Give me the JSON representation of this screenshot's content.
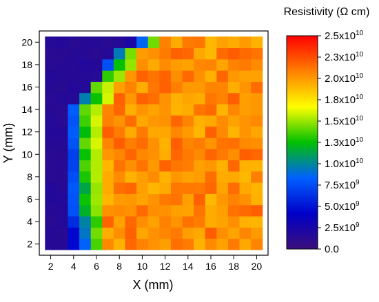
{
  "chart_data": {
    "type": "heatmap",
    "title": "",
    "xlabel": "X (mm)",
    "ylabel": "Y (mm)",
    "xlim": [
      1,
      21
    ],
    "ylim": [
      1,
      21
    ],
    "x_ticks": [
      "2",
      "4",
      "6",
      "8",
      "10",
      "12",
      "14",
      "16",
      "18",
      "20"
    ],
    "y_ticks": [
      "2",
      "4",
      "6",
      "8",
      "10",
      "12",
      "14",
      "16",
      "18",
      "20"
    ],
    "colorbar": {
      "title": "Resistivity (Ω cm)",
      "range": [
        0,
        25000000000.0
      ],
      "tick_labels": [
        {
          "label": "2.5x10",
          "exp": "10",
          "value": 25000000000.0
        },
        {
          "label": "2.3x10",
          "exp": "10",
          "value": 22500000000.0
        },
        {
          "label": "2.0x10",
          "exp": "10",
          "value": 20000000000.0
        },
        {
          "label": "1.8x10",
          "exp": "10",
          "value": 17500000000.0
        },
        {
          "label": "1.5x10",
          "exp": "10",
          "value": 15000000000.0
        },
        {
          "label": "1.3x10",
          "exp": "10",
          "value": 12500000000.0
        },
        {
          "label": "1.0x10",
          "exp": "10",
          "value": 10000000000.0
        },
        {
          "label": "7.5x10",
          "exp": "9",
          "value": 7500000000.0
        },
        {
          "label": "5.0x10",
          "exp": "9",
          "value": 5000000000.0
        },
        {
          "label": "2.5x10",
          "exp": "9",
          "value": 2500000000.0
        },
        {
          "label": "0.0",
          "exp": "",
          "value": 0
        }
      ],
      "colors": [
        "#3b0f7a",
        "#0000c8",
        "#0060ff",
        "#00c000",
        "#ffff00",
        "#ff8000",
        "#ff0000"
      ]
    },
    "grid": {
      "x_start": 1.5,
      "y_start": 1.5,
      "cell": 1,
      "cols": 19,
      "rows": 19,
      "boundary_x": [
        3.5,
        3.5,
        3.5,
        3.5,
        3.5,
        3.5,
        3.5,
        3.5,
        3.5,
        3.5,
        3.5,
        3.5,
        3.5,
        4.2,
        5.0,
        5.6,
        6.2,
        7.0,
        8.3
      ],
      "edge_values": [
        [
          0.2,
          0.35,
          0.55
        ],
        [
          0.2,
          0.35,
          0.55
        ],
        [
          0.25,
          0.4,
          0.55
        ],
        [
          0.3,
          0.45,
          0.6
        ],
        [
          0.3,
          0.5,
          0.6
        ],
        [
          0.3,
          0.45,
          0.6
        ],
        [
          0.3,
          0.5,
          0.6
        ],
        [
          0.3,
          0.55,
          0.62
        ],
        [
          0.3,
          0.5,
          0.62
        ],
        [
          0.3,
          0.55,
          0.62
        ],
        [
          0.35,
          0.5,
          0.62
        ],
        [
          0.3,
          0.55,
          0.62
        ],
        [
          0.35,
          0.55,
          0.62
        ],
        [
          0.4,
          0.5,
          0.62
        ],
        [
          0.3,
          0.55,
          0.62
        ],
        [
          0.35,
          0.55,
          0.62
        ],
        [
          0.3,
          0.5,
          0.62
        ],
        [
          0.2,
          0.4,
          0.6
        ],
        [
          0.1,
          0.35,
          0.55
        ]
      ],
      "bg_value": 0.05,
      "interior_base": 0.82,
      "interior_variation": 0.06
    }
  }
}
